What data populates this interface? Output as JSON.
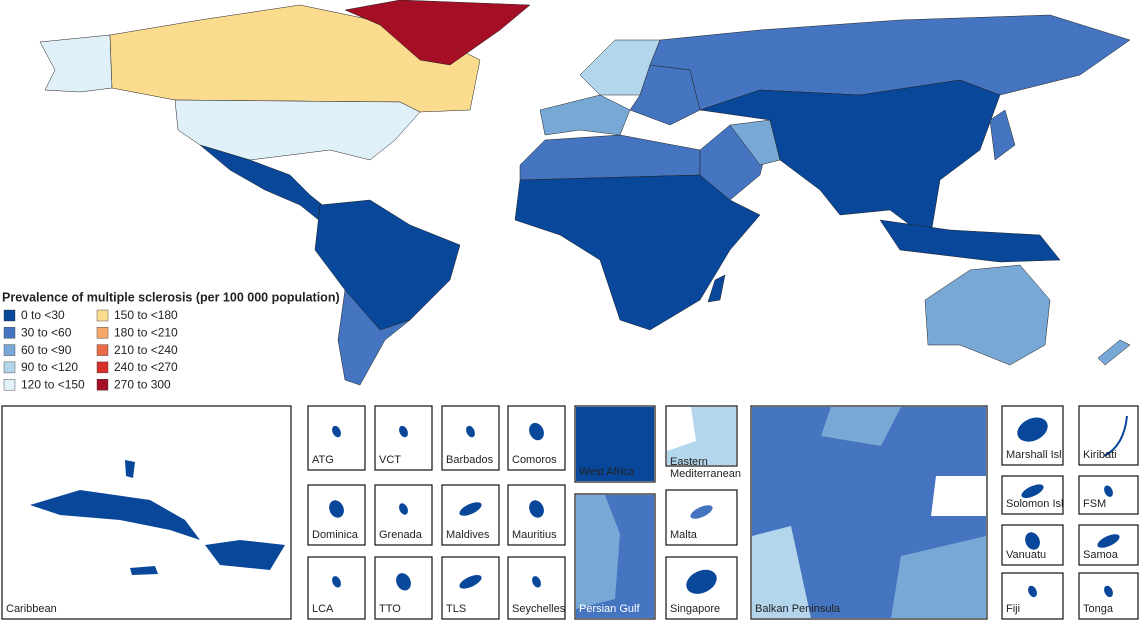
{
  "legend": {
    "title": "Prevalence of multiple sclerosis (per 100 000 population)",
    "items": [
      {
        "label": "0 to <30",
        "color": "#08479a"
      },
      {
        "label": "30 to <60",
        "color": "#4575c0"
      },
      {
        "label": "60 to <90",
        "color": "#77a8d6"
      },
      {
        "label": "90 to <120",
        "color": "#b3d6ec"
      },
      {
        "label": "120 to <150",
        "color": "#e0f0f8"
      },
      {
        "label": "150 to <180",
        "color": "#fbdc8e"
      },
      {
        "label": "180 to <210",
        "color": "#f5a86a"
      },
      {
        "label": "210 to <240",
        "color": "#ea6b47"
      },
      {
        "label": "240 to <270",
        "color": "#d7302a"
      },
      {
        "label": "270 to 300",
        "color": "#a50f26"
      }
    ]
  },
  "insets": [
    "Caribbean",
    "ATG",
    "VCT",
    "Barbados",
    "Comoros",
    "Dominica",
    "Grenada",
    "Maldives",
    "Mauritius",
    "LCA",
    "TTO",
    "TLS",
    "Seychelles",
    "West Africa",
    "Persian Gulf",
    "Eastern Mediterranean",
    "Malta",
    "Singapore",
    "Balkan Peninsula",
    "Marshall Isl",
    "Kiribati",
    "Solomon Isl",
    "FSM",
    "Vanuatu",
    "Samoa",
    "Fiji",
    "Tonga"
  ]
}
